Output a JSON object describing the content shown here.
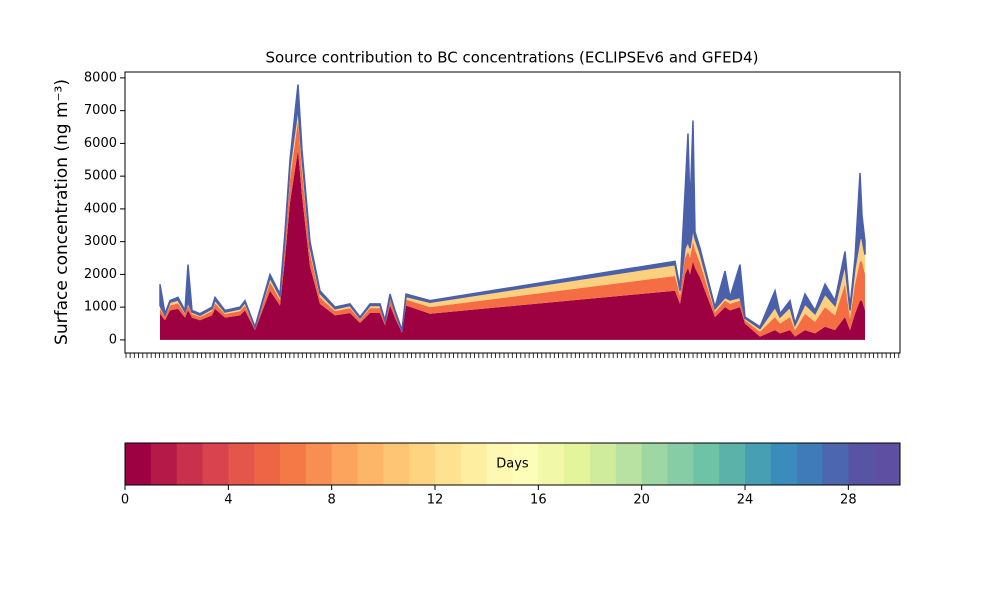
{
  "chart_data": {
    "type": "stacked_area",
    "title": "Source contribution to BC concentrations (ECLIPSEv6 and GFED4)",
    "ylabel": "Surface concentration (ng m⁻³)",
    "xlim": [
      0,
      775
    ],
    "ylim": [
      -400,
      8180
    ],
    "yticks": [
      0,
      1000,
      2000,
      3000,
      4000,
      5000,
      6000,
      7000,
      8000
    ],
    "x": [
      35,
      40,
      45,
      53,
      60,
      63,
      67,
      75,
      87,
      90,
      100,
      115,
      120,
      130,
      145,
      155,
      160,
      165,
      173,
      177,
      185,
      195,
      210,
      225,
      235,
      245,
      255,
      260,
      265,
      270,
      277,
      281,
      305,
      550,
      555,
      560,
      563,
      565,
      568,
      570,
      575,
      590,
      600,
      605,
      615,
      620,
      635,
      650,
      655,
      665,
      670,
      680,
      690,
      700,
      710,
      720,
      725,
      730,
      735,
      737,
      740
    ],
    "series": [
      {
        "color": "#9e0142",
        "values": [
          800,
          600,
          900,
          950,
          680,
          900,
          680,
          600,
          750,
          950,
          680,
          750,
          900,
          300,
          1500,
          1050,
          2500,
          4200,
          5800,
          4400,
          2250,
          1100,
          750,
          820,
          520,
          820,
          820,
          450,
          1050,
          680,
          220,
          1050,
          800,
          1500,
          1100,
          2000,
          2200,
          2000,
          2400,
          2200,
          1900,
          700,
          1000,
          900,
          1000,
          500,
          100,
          300,
          200,
          300,
          100,
          300,
          200,
          400,
          300,
          700,
          300,
          800,
          1200,
          1200,
          900
        ]
      },
      {
        "color": "#f46d43",
        "values": [
          150,
          100,
          150,
          170,
          110,
          150,
          110,
          100,
          130,
          170,
          110,
          130,
          150,
          50,
          260,
          180,
          430,
          700,
          900,
          750,
          400,
          200,
          130,
          150,
          90,
          150,
          150,
          80,
          180,
          110,
          40,
          180,
          200,
          450,
          250,
          500,
          500,
          500,
          600,
          550,
          450,
          150,
          200,
          200,
          200,
          100,
          150,
          400,
          300,
          400,
          200,
          500,
          350,
          600,
          450,
          1000,
          350,
          900,
          1200,
          1200,
          1100
        ]
      },
      {
        "color": "#fdd07f",
        "values": [
          100,
          50,
          100,
          100,
          60,
          100,
          60,
          50,
          70,
          100,
          60,
          70,
          100,
          30,
          140,
          100,
          230,
          400,
          400,
          400,
          200,
          120,
          70,
          80,
          50,
          80,
          80,
          40,
          100,
          60,
          20,
          100,
          150,
          350,
          150,
          300,
          300,
          300,
          400,
          350,
          300,
          100,
          100,
          120,
          100,
          60,
          100,
          300,
          200,
          300,
          150,
          300,
          250,
          400,
          300,
          600,
          250,
          500,
          700,
          700,
          600
        ]
      },
      {
        "color": "#4b60ab",
        "values": [
          650,
          50,
          50,
          80,
          50,
          1150,
          50,
          50,
          50,
          80,
          50,
          50,
          50,
          20,
          100,
          70,
          140,
          200,
          700,
          250,
          150,
          80,
          50,
          50,
          40,
          50,
          50,
          30,
          70,
          50,
          20,
          70,
          50,
          100,
          100,
          1700,
          3300,
          1200,
          3300,
          200,
          150,
          50,
          800,
          80,
          1000,
          40,
          50,
          500,
          100,
          200,
          50,
          300,
          100,
          300,
          150,
          400,
          100,
          300,
          2000,
          700,
          400
        ]
      }
    ],
    "colorbar": {
      "label": "Days",
      "lim": [
        0,
        30
      ],
      "ticks": [
        0,
        4,
        8,
        12,
        16,
        20,
        24,
        28
      ],
      "colors": [
        "#9e0142",
        "#b41947",
        "#c9304c",
        "#d8434e",
        "#e4564a",
        "#ee6546",
        "#f57847",
        "#f98e52",
        "#fca35d",
        "#fdb668",
        "#fdc574",
        "#fed481",
        "#fee290",
        "#feeea0",
        "#fff8b2",
        "#fcfdb9",
        "#f1f9a8",
        "#e3f49a",
        "#cfec9d",
        "#b7e2a1",
        "#9ed6a4",
        "#86cca5",
        "#6ec2a5",
        "#5ab2a9",
        "#479fb3",
        "#3a8cbc",
        "#3f7ab9",
        "#4c67af",
        "#5754a6",
        "#5e4fa2"
      ]
    }
  }
}
